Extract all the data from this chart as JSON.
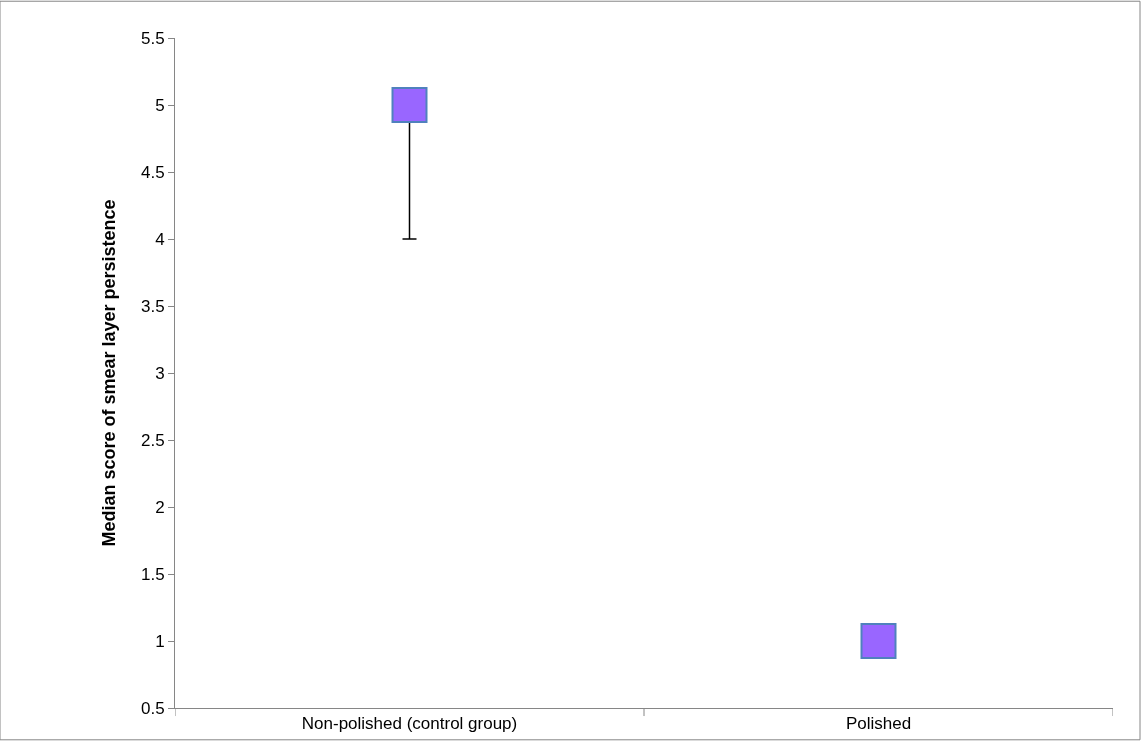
{
  "chart_data": {
    "type": "scatter",
    "ylabel": "Median score of smear layer persistence",
    "categories": [
      "Non-polished (control group)",
      "Polished"
    ],
    "values": [
      5,
      1
    ],
    "color": "#9966ff",
    "errors": [
      [
        4,
        5
      ],
      null
    ],
    "marker": "square",
    "ylim": [
      0.5,
      5.5
    ],
    "yticks": [
      0.5,
      1,
      1.5,
      2,
      2.5,
      3,
      3.5,
      4,
      4.5,
      5,
      5.5
    ],
    "legend": false
  }
}
